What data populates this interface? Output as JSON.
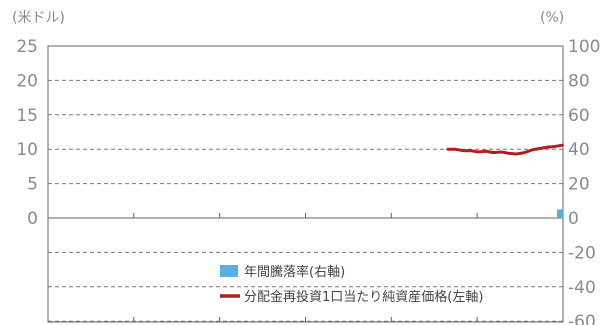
{
  "chart_data": {
    "type": "line",
    "left_axis": {
      "unit_label": "(米ドル)",
      "ticks": [
        "25",
        "20",
        "15",
        "10",
        "5",
        "0"
      ],
      "ylim": [
        0,
        25
      ]
    },
    "right_axis": {
      "unit_label": "(%)",
      "ticks": [
        "100",
        "80",
        "60",
        "40",
        "20",
        "0",
        "-20",
        "-40",
        "-60"
      ],
      "ylim": [
        -60,
        100
      ]
    },
    "grid": true,
    "legend_position": "bottom-right",
    "x_range": [
      0,
      100
    ],
    "series": [
      {
        "name": "分配金再投資1口当たり純資産価格(左軸)",
        "kind": "line",
        "axis": "left",
        "color": "#b01e23",
        "x": [
          77.5,
          79,
          80.5,
          82,
          83.5,
          85,
          86.5,
          88,
          89.5,
          91,
          92.5,
          94,
          95.5,
          97,
          98.5,
          100
        ],
        "values": [
          10.0,
          10.0,
          9.8,
          9.8,
          9.6,
          9.7,
          9.5,
          9.6,
          9.4,
          9.3,
          9.5,
          9.9,
          10.1,
          10.3,
          10.4,
          10.6
        ]
      },
      {
        "name": "年間騰落率(右軸)",
        "kind": "bar",
        "axis": "right",
        "color": "#5aaee0",
        "x": [
          100
        ],
        "values": [
          5
        ]
      }
    ]
  }
}
